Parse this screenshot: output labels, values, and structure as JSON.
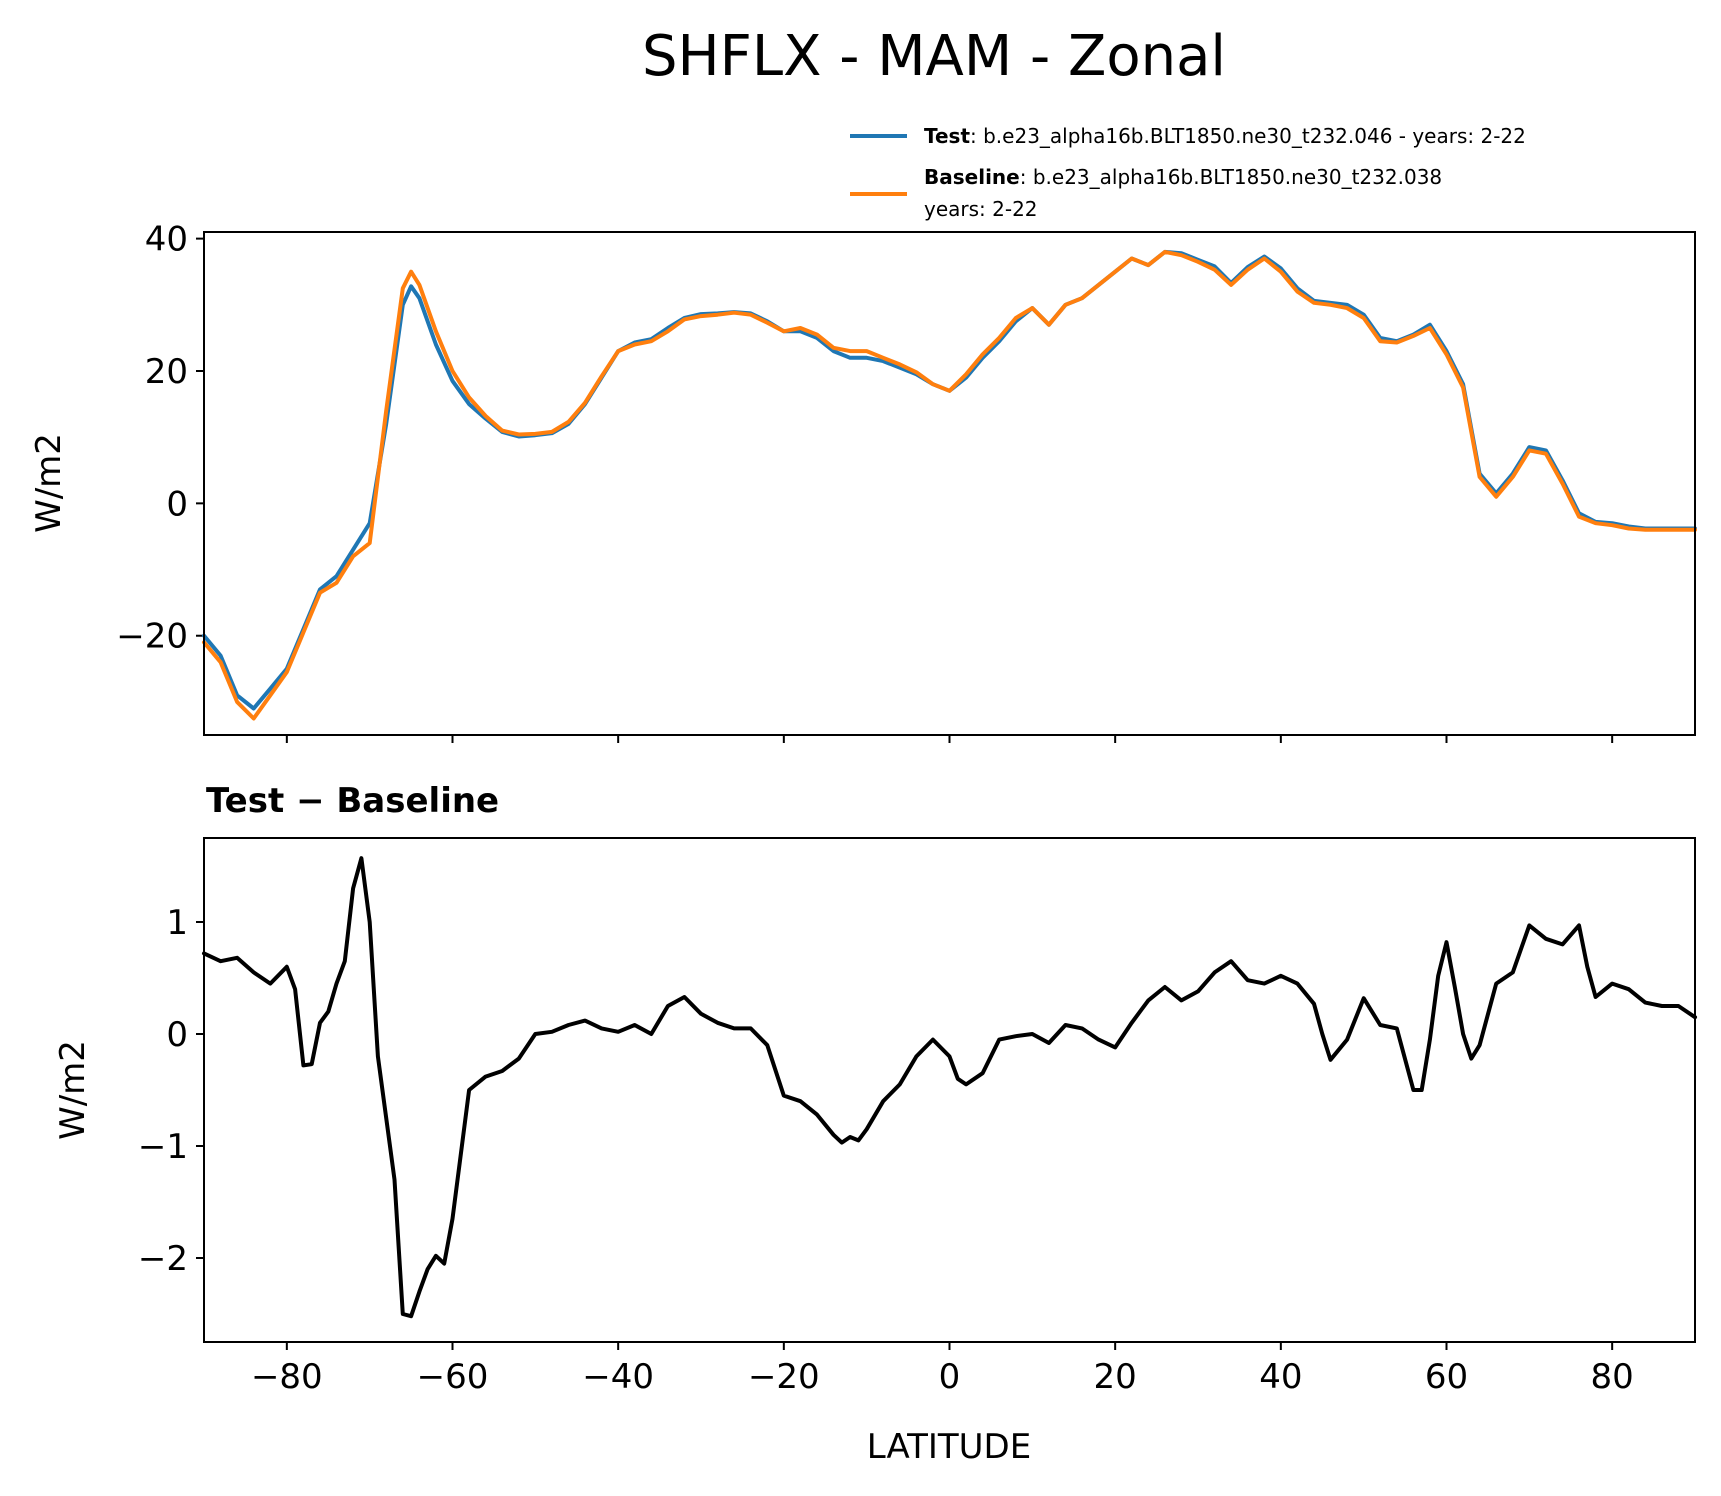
{
  "chart_data": [
    {
      "type": "line",
      "title": "SHFLX - MAM - Zonal",
      "xlabel": "",
      "ylabel": "W/m2",
      "xlim": [
        -90,
        90
      ],
      "ylim": [
        -35,
        41
      ],
      "xticks": [
        -80,
        -60,
        -40,
        -20,
        0,
        20,
        40,
        60,
        80
      ],
      "yticks": [
        -20,
        0,
        20,
        40
      ],
      "ytick_labels": [
        "−20",
        "0",
        "20",
        "40"
      ],
      "legend": {
        "placement": "top-right",
        "entries": [
          {
            "bold": "Test",
            "text": ": b.e23_alpha16b.BLT1850.ne30_t232.046 - years: 2-22"
          },
          {
            "bold": "Baseline",
            "text": ": b.e23_alpha16b.BLT1850.ne30_t232.038",
            "text2": "years: 2-22"
          }
        ]
      },
      "series": [
        {
          "name": "Test",
          "color": "#1f77b4",
          "x": [
            -90,
            -88,
            -86,
            -84,
            -82,
            -80,
            -78,
            -76,
            -74,
            -72,
            -70,
            -68,
            -66,
            -65,
            -64,
            -62,
            -60,
            -58,
            -56,
            -54,
            -52,
            -50,
            -48,
            -46,
            -44,
            -42,
            -40,
            -38,
            -36,
            -34,
            -32,
            -30,
            -28,
            -26,
            -24,
            -22,
            -20,
            -18,
            -16,
            -14,
            -12,
            -10,
            -8,
            -6,
            -4,
            -2,
            0,
            2,
            4,
            6,
            8,
            10,
            12,
            14,
            16,
            18,
            20,
            22,
            24,
            26,
            28,
            30,
            32,
            34,
            36,
            38,
            40,
            42,
            44,
            46,
            48,
            50,
            52,
            54,
            56,
            58,
            60,
            62,
            64,
            66,
            68,
            70,
            72,
            74,
            76,
            78,
            80,
            82,
            84,
            86,
            88,
            90
          ],
          "values": [
            -20,
            -23,
            -29,
            -31,
            -28,
            -25,
            -19,
            -13,
            -11,
            -7,
            -3,
            12,
            30,
            32.8,
            31,
            24,
            18.5,
            15,
            12.8,
            10.8,
            10.1,
            10.3,
            10.6,
            12,
            15,
            19,
            23,
            24.3,
            24.8,
            26.5,
            28,
            28.6,
            28.7,
            28.9,
            28.7,
            27.5,
            26,
            26,
            25,
            23,
            22,
            22,
            21.5,
            20.5,
            19.5,
            18,
            17,
            19,
            22,
            24.5,
            27.5,
            29.5,
            27,
            30,
            31,
            33,
            35,
            37,
            36,
            38,
            37.8,
            36.8,
            35.8,
            33.3,
            35.7,
            37.3,
            35.5,
            32.5,
            30.6,
            30.3,
            30,
            28.5,
            25,
            24.5,
            25.5,
            27,
            23,
            18,
            4.5,
            1.5,
            4.5,
            8.5,
            8,
            3.5,
            -1.5,
            -2.8,
            -3,
            -3.5,
            -3.8,
            -3.8,
            -3.8,
            -3.8
          ]
        },
        {
          "name": "Baseline",
          "color": "#ff7f0e",
          "x": [
            -90,
            -88,
            -86,
            -84,
            -82,
            -80,
            -78,
            -76,
            -74,
            -72,
            -70,
            -68,
            -66,
            -65,
            -64,
            -62,
            -60,
            -58,
            -56,
            -54,
            -52,
            -50,
            -48,
            -46,
            -44,
            -42,
            -40,
            -38,
            -36,
            -34,
            -32,
            -30,
            -28,
            -26,
            -24,
            -22,
            -20,
            -18,
            -16,
            -14,
            -12,
            -10,
            -8,
            -6,
            -4,
            -2,
            0,
            2,
            4,
            6,
            8,
            10,
            12,
            14,
            16,
            18,
            20,
            22,
            24,
            26,
            28,
            30,
            32,
            34,
            36,
            38,
            40,
            42,
            44,
            46,
            48,
            50,
            52,
            54,
            56,
            58,
            60,
            62,
            64,
            66,
            68,
            70,
            72,
            74,
            76,
            78,
            80,
            82,
            84,
            86,
            88,
            90
          ],
          "values": [
            -21,
            -24,
            -30,
            -32.5,
            -29,
            -25.5,
            -19.5,
            -13.5,
            -12,
            -8,
            -6,
            14,
            32.5,
            35,
            33,
            26,
            20,
            16,
            13.2,
            11,
            10.4,
            10.5,
            10.8,
            12.3,
            15.2,
            19.2,
            23,
            24,
            24.5,
            26,
            27.8,
            28.3,
            28.5,
            28.8,
            28.5,
            27.3,
            26,
            26.5,
            25.5,
            23.5,
            23,
            23,
            22,
            21,
            19.8,
            18,
            17,
            19.5,
            22.5,
            25,
            28,
            29.5,
            27,
            30,
            31,
            33,
            35,
            37,
            36,
            38,
            37.5,
            36.5,
            35.3,
            33,
            35.3,
            37,
            35,
            32,
            30.3,
            30,
            29.5,
            28,
            24.5,
            24.3,
            25.3,
            26.5,
            22.5,
            17.5,
            4,
            1,
            4,
            8,
            7.5,
            3,
            -2,
            -3,
            -3.3,
            -3.8,
            -4,
            -4,
            -4,
            -4
          ]
        }
      ]
    },
    {
      "type": "line",
      "title": "Test − Baseline",
      "xlabel": "LATITUDE",
      "ylabel": "W/m2",
      "xlim": [
        -90,
        90
      ],
      "ylim": [
        -2.75,
        1.75
      ],
      "xticks": [
        -80,
        -60,
        -40,
        -20,
        0,
        20,
        40,
        60,
        80
      ],
      "xtick_labels": [
        "−80",
        "−60",
        "−40",
        "−20",
        "0",
        "20",
        "40",
        "60",
        "80"
      ],
      "yticks": [
        -2,
        -1,
        0,
        1
      ],
      "ytick_labels": [
        "−2",
        "−1",
        "0",
        "1"
      ],
      "series": [
        {
          "name": "Test − Baseline",
          "color": "#000000",
          "x": [
            -90,
            -88,
            -86,
            -84,
            -82,
            -80,
            -79,
            -78,
            -77,
            -76,
            -75,
            -74,
            -73,
            -72,
            -71,
            -70,
            -69,
            -67,
            -66,
            -65,
            -64,
            -63,
            -62,
            -61,
            -60,
            -58,
            -56,
            -54,
            -52,
            -50,
            -48,
            -46,
            -44,
            -42,
            -40,
            -38,
            -36,
            -34,
            -32,
            -30,
            -28,
            -26,
            -24,
            -22,
            -20,
            -18,
            -16,
            -14,
            -13,
            -12,
            -11,
            -10,
            -8,
            -6,
            -4,
            -2,
            0,
            1,
            2,
            4,
            6,
            8,
            10,
            12,
            14,
            16,
            18,
            20,
            22,
            24,
            26,
            28,
            30,
            32,
            34,
            36,
            38,
            40,
            42,
            44,
            45,
            46,
            48,
            50,
            52,
            54,
            56,
            57,
            58,
            59,
            60,
            61,
            62,
            63,
            64,
            66,
            68,
            70,
            72,
            74,
            76,
            77,
            78,
            80,
            82,
            84,
            86,
            88,
            90
          ],
          "values": [
            0.72,
            0.65,
            0.68,
            0.55,
            0.45,
            0.6,
            0.4,
            -0.28,
            -0.27,
            0.1,
            0.2,
            0.45,
            0.65,
            1.3,
            1.57,
            1.0,
            -0.2,
            -1.3,
            -2.5,
            -2.52,
            -2.3,
            -2.1,
            -1.98,
            -2.05,
            -1.65,
            -0.5,
            -0.38,
            -0.33,
            -0.22,
            0.0,
            0.02,
            0.08,
            0.12,
            0.05,
            0.02,
            0.08,
            0.0,
            0.25,
            0.33,
            0.18,
            0.1,
            0.05,
            0.05,
            -0.1,
            -0.55,
            -0.6,
            -0.72,
            -0.9,
            -0.97,
            -0.92,
            -0.95,
            -0.85,
            -0.6,
            -0.45,
            -0.2,
            -0.05,
            -0.2,
            -0.4,
            -0.45,
            -0.35,
            -0.05,
            -0.02,
            0.0,
            -0.08,
            0.08,
            0.05,
            -0.05,
            -0.12,
            0.1,
            0.3,
            0.42,
            0.3,
            0.38,
            0.55,
            0.65,
            0.48,
            0.45,
            0.52,
            0.45,
            0.27,
            0.0,
            -0.23,
            -0.05,
            0.32,
            0.08,
            0.05,
            -0.5,
            -0.5,
            -0.05,
            0.52,
            0.82,
            0.42,
            0.0,
            -0.22,
            -0.1,
            0.45,
            0.55,
            0.97,
            0.85,
            0.8,
            0.97,
            0.6,
            0.33,
            0.45,
            0.4,
            0.28,
            0.25,
            0.25,
            0.15
          ]
        }
      ]
    }
  ]
}
